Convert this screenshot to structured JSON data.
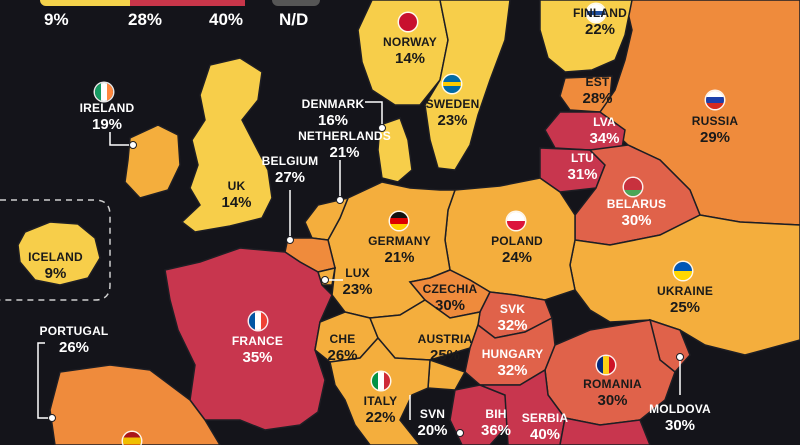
{
  "legend": {
    "min": "9%",
    "mid": "28%",
    "max": "40%",
    "nd": "N/D",
    "colors": [
      "#f4d24b",
      "#f09a3b",
      "#c8364a"
    ],
    "nd_color": "#555555"
  },
  "colors": {
    "background": "#14141a",
    "low": "#f7ce4a",
    "midlow": "#f4ae3d",
    "mid": "#ef8b3c",
    "midhigh": "#e0624a",
    "high": "#c8364e",
    "border": "#1e1e24"
  },
  "countries": {
    "finland": {
      "name": "FINLAND",
      "value": "22%"
    },
    "norway": {
      "name": "NORWAY",
      "value": "14%"
    },
    "sweden": {
      "name": "SWEDEN",
      "value": "23%"
    },
    "estonia": {
      "name": "EST",
      "value": "28%"
    },
    "russia": {
      "name": "RUSSIA",
      "value": "29%"
    },
    "ireland": {
      "name": "IRELAND",
      "value": "19%"
    },
    "denmark": {
      "name": "DENMARK",
      "value": "16%"
    },
    "latvia": {
      "name": "LVA",
      "value": "34%"
    },
    "netherlands": {
      "name": "NETHERLANDS",
      "value": "21%"
    },
    "lithuania": {
      "name": "LTU",
      "value": "31%"
    },
    "belgium": {
      "name": "BELGIUM",
      "value": "27%"
    },
    "uk": {
      "name": "UK",
      "value": "14%"
    },
    "belarus": {
      "name": "BELARUS",
      "value": "30%"
    },
    "germany": {
      "name": "GERMANY",
      "value": "21%"
    },
    "poland": {
      "name": "POLAND",
      "value": "24%"
    },
    "iceland": {
      "name": "ICELAND",
      "value": "9%"
    },
    "luxembourg": {
      "name": "LUX",
      "value": "23%"
    },
    "czechia": {
      "name": "CZECHIA",
      "value": "30%"
    },
    "ukraine": {
      "name": "UKRAINE",
      "value": "25%"
    },
    "portugal": {
      "name": "PORTUGAL",
      "value": "26%"
    },
    "france": {
      "name": "FRANCE",
      "value": "35%"
    },
    "slovakia": {
      "name": "SVK",
      "value": "32%"
    },
    "austria": {
      "name": "AUSTRIA",
      "value": "25%"
    },
    "switzerland": {
      "name": "CHE",
      "value": "26%"
    },
    "hungary": {
      "name": "HUNGARY",
      "value": "32%"
    },
    "romania": {
      "name": "ROMANIA",
      "value": "30%"
    },
    "italy": {
      "name": "ITALY",
      "value": "22%"
    },
    "slovenia": {
      "name": "SVN",
      "value": "20%"
    },
    "bih": {
      "name": "BIH",
      "value": "36%"
    },
    "serbia": {
      "name": "SERBIA",
      "value": "40%"
    },
    "moldova": {
      "name": "MOLDOVA",
      "value": "30%"
    }
  }
}
